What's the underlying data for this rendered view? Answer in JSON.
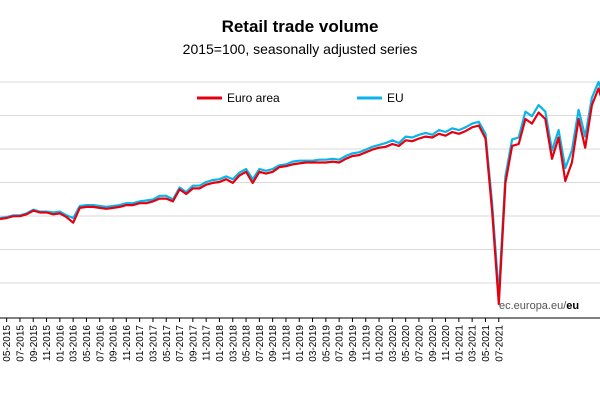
{
  "chart_data": {
    "type": "line",
    "title": "Retail trade volume",
    "subtitle": "2015=100, seasonally adjusted series",
    "xlabel": "",
    "ylabel": "",
    "legend_position": "top-center",
    "grid": true,
    "source_prefix": "ec.europa.eu/",
    "source_suffix": "eu",
    "x_ticks": [
      "05-2015",
      "07-2015",
      "09-2015",
      "11-2015",
      "01-2016",
      "03-2016",
      "05-2016",
      "07-2016",
      "09-2016",
      "11-2016",
      "01-2017",
      "03-2017",
      "05-2017",
      "07-2017",
      "09-2017",
      "11-2017",
      "01-2018",
      "03-2018",
      "05-2018",
      "07-2018",
      "09-2018",
      "11-2018",
      "01-2019",
      "03-2019",
      "05-2019",
      "07-2019",
      "09-2019",
      "11-2019",
      "01-2020",
      "03-2020",
      "05-2020",
      "07-2020",
      "09-2020",
      "11-2020",
      "01-2021",
      "03-2021",
      "05-2021",
      "07-2021"
    ],
    "series": [
      {
        "name": "Euro area",
        "color": "#e3000f",
        "values": [
          99.7,
          99.8,
          100.0,
          100.0,
          100.2,
          100.6,
          100.4,
          100.4,
          100.2,
          100.3,
          99.9,
          99.3,
          100.9,
          101.0,
          101.0,
          100.9,
          100.8,
          100.9,
          101.0,
          101.2,
          101.2,
          101.4,
          101.4,
          101.6,
          101.9,
          101.9,
          101.6,
          102.9,
          102.4,
          103.0,
          103.0,
          103.4,
          103.6,
          103.7,
          104.0,
          103.6,
          104.4,
          104.8,
          103.6,
          104.8,
          104.6,
          104.8,
          105.3,
          105.4,
          105.6,
          105.7,
          105.8,
          105.8,
          105.8,
          105.8,
          105.9,
          105.8,
          106.2,
          106.5,
          106.6,
          106.9,
          107.2,
          107.4,
          107.5,
          107.8,
          107.6,
          108.2,
          108.1,
          108.4,
          108.6,
          108.5,
          108.9,
          108.7,
          109.1,
          108.9,
          109.2,
          109.6,
          109.8,
          108.4,
          100.6,
          90.5,
          103.6,
          107.6,
          107.8,
          110.5,
          110.0,
          111.2,
          110.5,
          106.2,
          108.5,
          103.8,
          105.8,
          110.5,
          107.4,
          112.0,
          113.8,
          111.5,
          112.0
        ]
      },
      {
        "name": "EU",
        "color": "#0bb3e8",
        "values": [
          99.8,
          99.9,
          100.1,
          100.1,
          100.3,
          100.7,
          100.5,
          100.5,
          100.4,
          100.5,
          100.1,
          99.8,
          101.1,
          101.2,
          101.2,
          101.1,
          101.0,
          101.1,
          101.2,
          101.4,
          101.4,
          101.6,
          101.7,
          101.8,
          102.2,
          102.2,
          101.8,
          103.1,
          102.6,
          103.3,
          103.3,
          103.7,
          103.9,
          104.0,
          104.3,
          104.0,
          104.7,
          105.1,
          104.0,
          105.1,
          104.9,
          105.1,
          105.5,
          105.6,
          105.9,
          106.0,
          106.0,
          106.0,
          106.1,
          106.1,
          106.2,
          106.1,
          106.5,
          106.8,
          106.9,
          107.2,
          107.5,
          107.7,
          107.9,
          108.2,
          107.9,
          108.6,
          108.5,
          108.8,
          109.0,
          108.8,
          109.3,
          109.1,
          109.5,
          109.3,
          109.6,
          110.0,
          110.2,
          108.9,
          101.4,
          91.5,
          104.3,
          108.3,
          108.5,
          111.3,
          110.8,
          112.0,
          111.3,
          107.1,
          109.3,
          105.2,
          107.1,
          111.5,
          108.6,
          112.8,
          114.5,
          112.4,
          112.9
        ]
      }
    ],
    "ylim": [
      89,
      114.5
    ]
  }
}
